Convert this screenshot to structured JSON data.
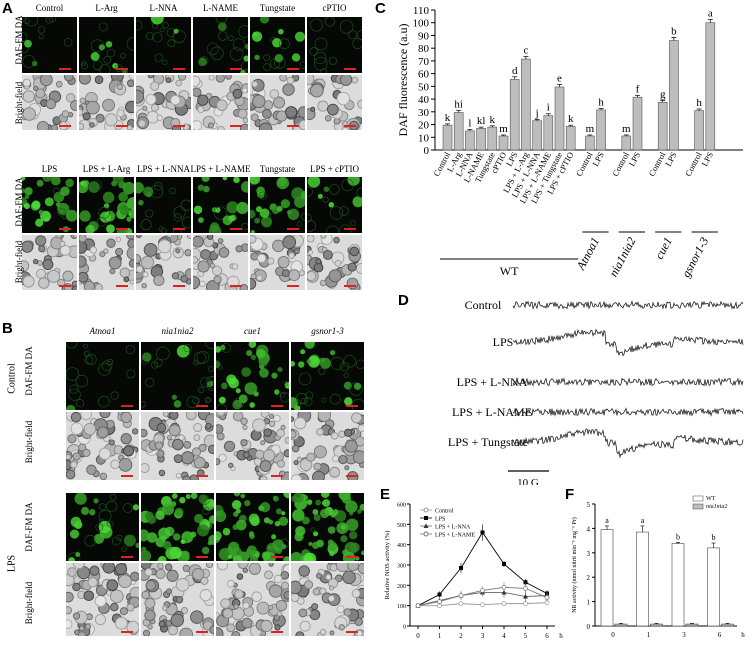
{
  "panels": {
    "A": "A",
    "B": "B",
    "C": "C",
    "D": "D",
    "E": "E",
    "F": "F"
  },
  "panelA": {
    "row_labels": {
      "fluor": "DAF-FM DA",
      "bright": "Bright-field"
    },
    "headers_top": [
      "Control",
      "L-Arg",
      "L-NNA",
      "L-NAME",
      "Tungstate",
      "cPTIO"
    ],
    "headers_bottom": [
      "LPS",
      "LPS + L-Arg",
      "LPS + L-NNA",
      "LPS + L-NAME",
      "Tungstate",
      "LPS + cPTIO"
    ],
    "green_top": [
      0.05,
      0.15,
      0.06,
      0.08,
      0.25,
      0.03
    ],
    "green_bottom": [
      0.55,
      0.85,
      0.12,
      0.35,
      0.75,
      0.1
    ]
  },
  "panelB": {
    "headers": [
      "Atnoa1",
      "nia1nia2",
      "cue1",
      "gsnor1-3"
    ],
    "row_labels": {
      "fluor": "DAF-FM DA",
      "bright": "Bright-field"
    },
    "group_labels": {
      "control": "Control",
      "lps": "LPS"
    },
    "green_control": [
      0.03,
      0.03,
      0.55,
      0.35
    ],
    "green_lps": [
      0.3,
      0.85,
      0.95,
      0.9
    ]
  },
  "chart_data": [
    {
      "panel": "C",
      "type": "bar",
      "ylabel": "DAF fluorescence (a.u)",
      "ylim": [
        0,
        110
      ],
      "yticks": [
        0,
        10,
        20,
        30,
        40,
        50,
        60,
        70,
        80,
        90,
        100,
        110
      ],
      "categories": [
        "Control",
        "L-Arg",
        "L-NNA",
        "L-NAME",
        "Tungstate",
        "cPTIO",
        "LPS",
        "LPS + L-Arg",
        "LPS + L-NNA",
        "LPS + L-NAME",
        "LPS + Tungstate",
        "LPS + cPTIO",
        "Control",
        "LPS",
        "Control",
        "LPS",
        "Control",
        "LPS",
        "Control",
        "LPS"
      ],
      "values": [
        19.5,
        29.5,
        15,
        17,
        18,
        11,
        55.5,
        71.5,
        23,
        27,
        49.5,
        18.5,
        11,
        31.5,
        11,
        41.5,
        37.5,
        86,
        31,
        100
      ],
      "errors": [
        1,
        1.5,
        1,
        1,
        1,
        0.8,
        2,
        2,
        1,
        1.5,
        2,
        1,
        0.8,
        1.2,
        0.8,
        1.5,
        1.5,
        2.5,
        1.2,
        2.5
      ],
      "letters": [
        "k",
        "hi",
        "l",
        "kl",
        "k",
        "m",
        "d",
        "c",
        "j",
        "i",
        "e",
        "k",
        "m",
        "h",
        "m",
        "f",
        "g",
        "b",
        "h",
        "a"
      ],
      "groups": [
        {
          "label": "WT",
          "start": 0,
          "end": 11
        },
        {
          "label": "Atnoa1",
          "start": 12,
          "end": 13
        },
        {
          "label": "nia1nia2",
          "start": 14,
          "end": 15
        },
        {
          "label": "cue1",
          "start": 16,
          "end": 17
        },
        {
          "label": "gsnor1-3",
          "start": 18,
          "end": 19
        }
      ]
    },
    {
      "panel": "D",
      "type": "line",
      "traces": [
        "Control",
        "LPS",
        "LPS + L-NNA",
        "LPS + L-NAME",
        "LPS + Tungstate"
      ],
      "scale_label": "10 G"
    },
    {
      "panel": "E",
      "type": "line",
      "ylabel": "Relative NOS activity (%)",
      "xlabel": "h",
      "x": [
        0,
        1,
        2,
        3,
        4,
        5,
        6
      ],
      "ylim": [
        0,
        600
      ],
      "yticks": [
        0,
        100,
        200,
        300,
        400,
        500,
        600
      ],
      "series": [
        {
          "name": "Control",
          "values": [
            100,
            100,
            110,
            105,
            110,
            110,
            115
          ]
        },
        {
          "name": "LPS",
          "values": [
            100,
            155,
            285,
            460,
            305,
            215,
            160
          ]
        },
        {
          "name": "LPS + L-NNA",
          "values": [
            100,
            125,
            150,
            165,
            165,
            145,
            150
          ]
        },
        {
          "name": "LPS + L-NAME",
          "values": [
            100,
            120,
            150,
            175,
            190,
            185,
            140
          ]
        }
      ],
      "errors": [
        [
          5,
          5,
          10,
          10,
          10,
          10,
          10
        ],
        [
          5,
          15,
          25,
          40,
          15,
          15,
          15
        ],
        [
          5,
          15,
          20,
          20,
          25,
          25,
          20
        ],
        [
          5,
          15,
          20,
          20,
          25,
          25,
          20
        ]
      ]
    },
    {
      "panel": "F",
      "type": "bar",
      "ylabel": "NR activity (nmol nitrit min⁻¹ mg⁻¹ Pr)",
      "xlabel": "h",
      "categories": [
        "0",
        "1",
        "3",
        "6"
      ],
      "ylim": [
        0,
        5
      ],
      "yticks": [
        0,
        1,
        2,
        3,
        4,
        5
      ],
      "series": [
        {
          "name": "WT",
          "values": [
            3.95,
            3.85,
            3.38,
            3.2
          ]
        },
        {
          "name": "nia1nia2",
          "values": [
            0.08,
            0.08,
            0.08,
            0.08
          ]
        }
      ],
      "errors": [
        [
          0.15,
          0.25,
          0.05,
          0.2
        ],
        [
          0.03,
          0.03,
          0.03,
          0.03
        ]
      ],
      "letters": [
        "a",
        "a",
        "b",
        "b"
      ]
    }
  ],
  "colors": {
    "bar": "#bdbdbd",
    "green": "#4fd43a",
    "barF_wt": "#ffffff",
    "barF_mut": "#bdbdbd"
  }
}
